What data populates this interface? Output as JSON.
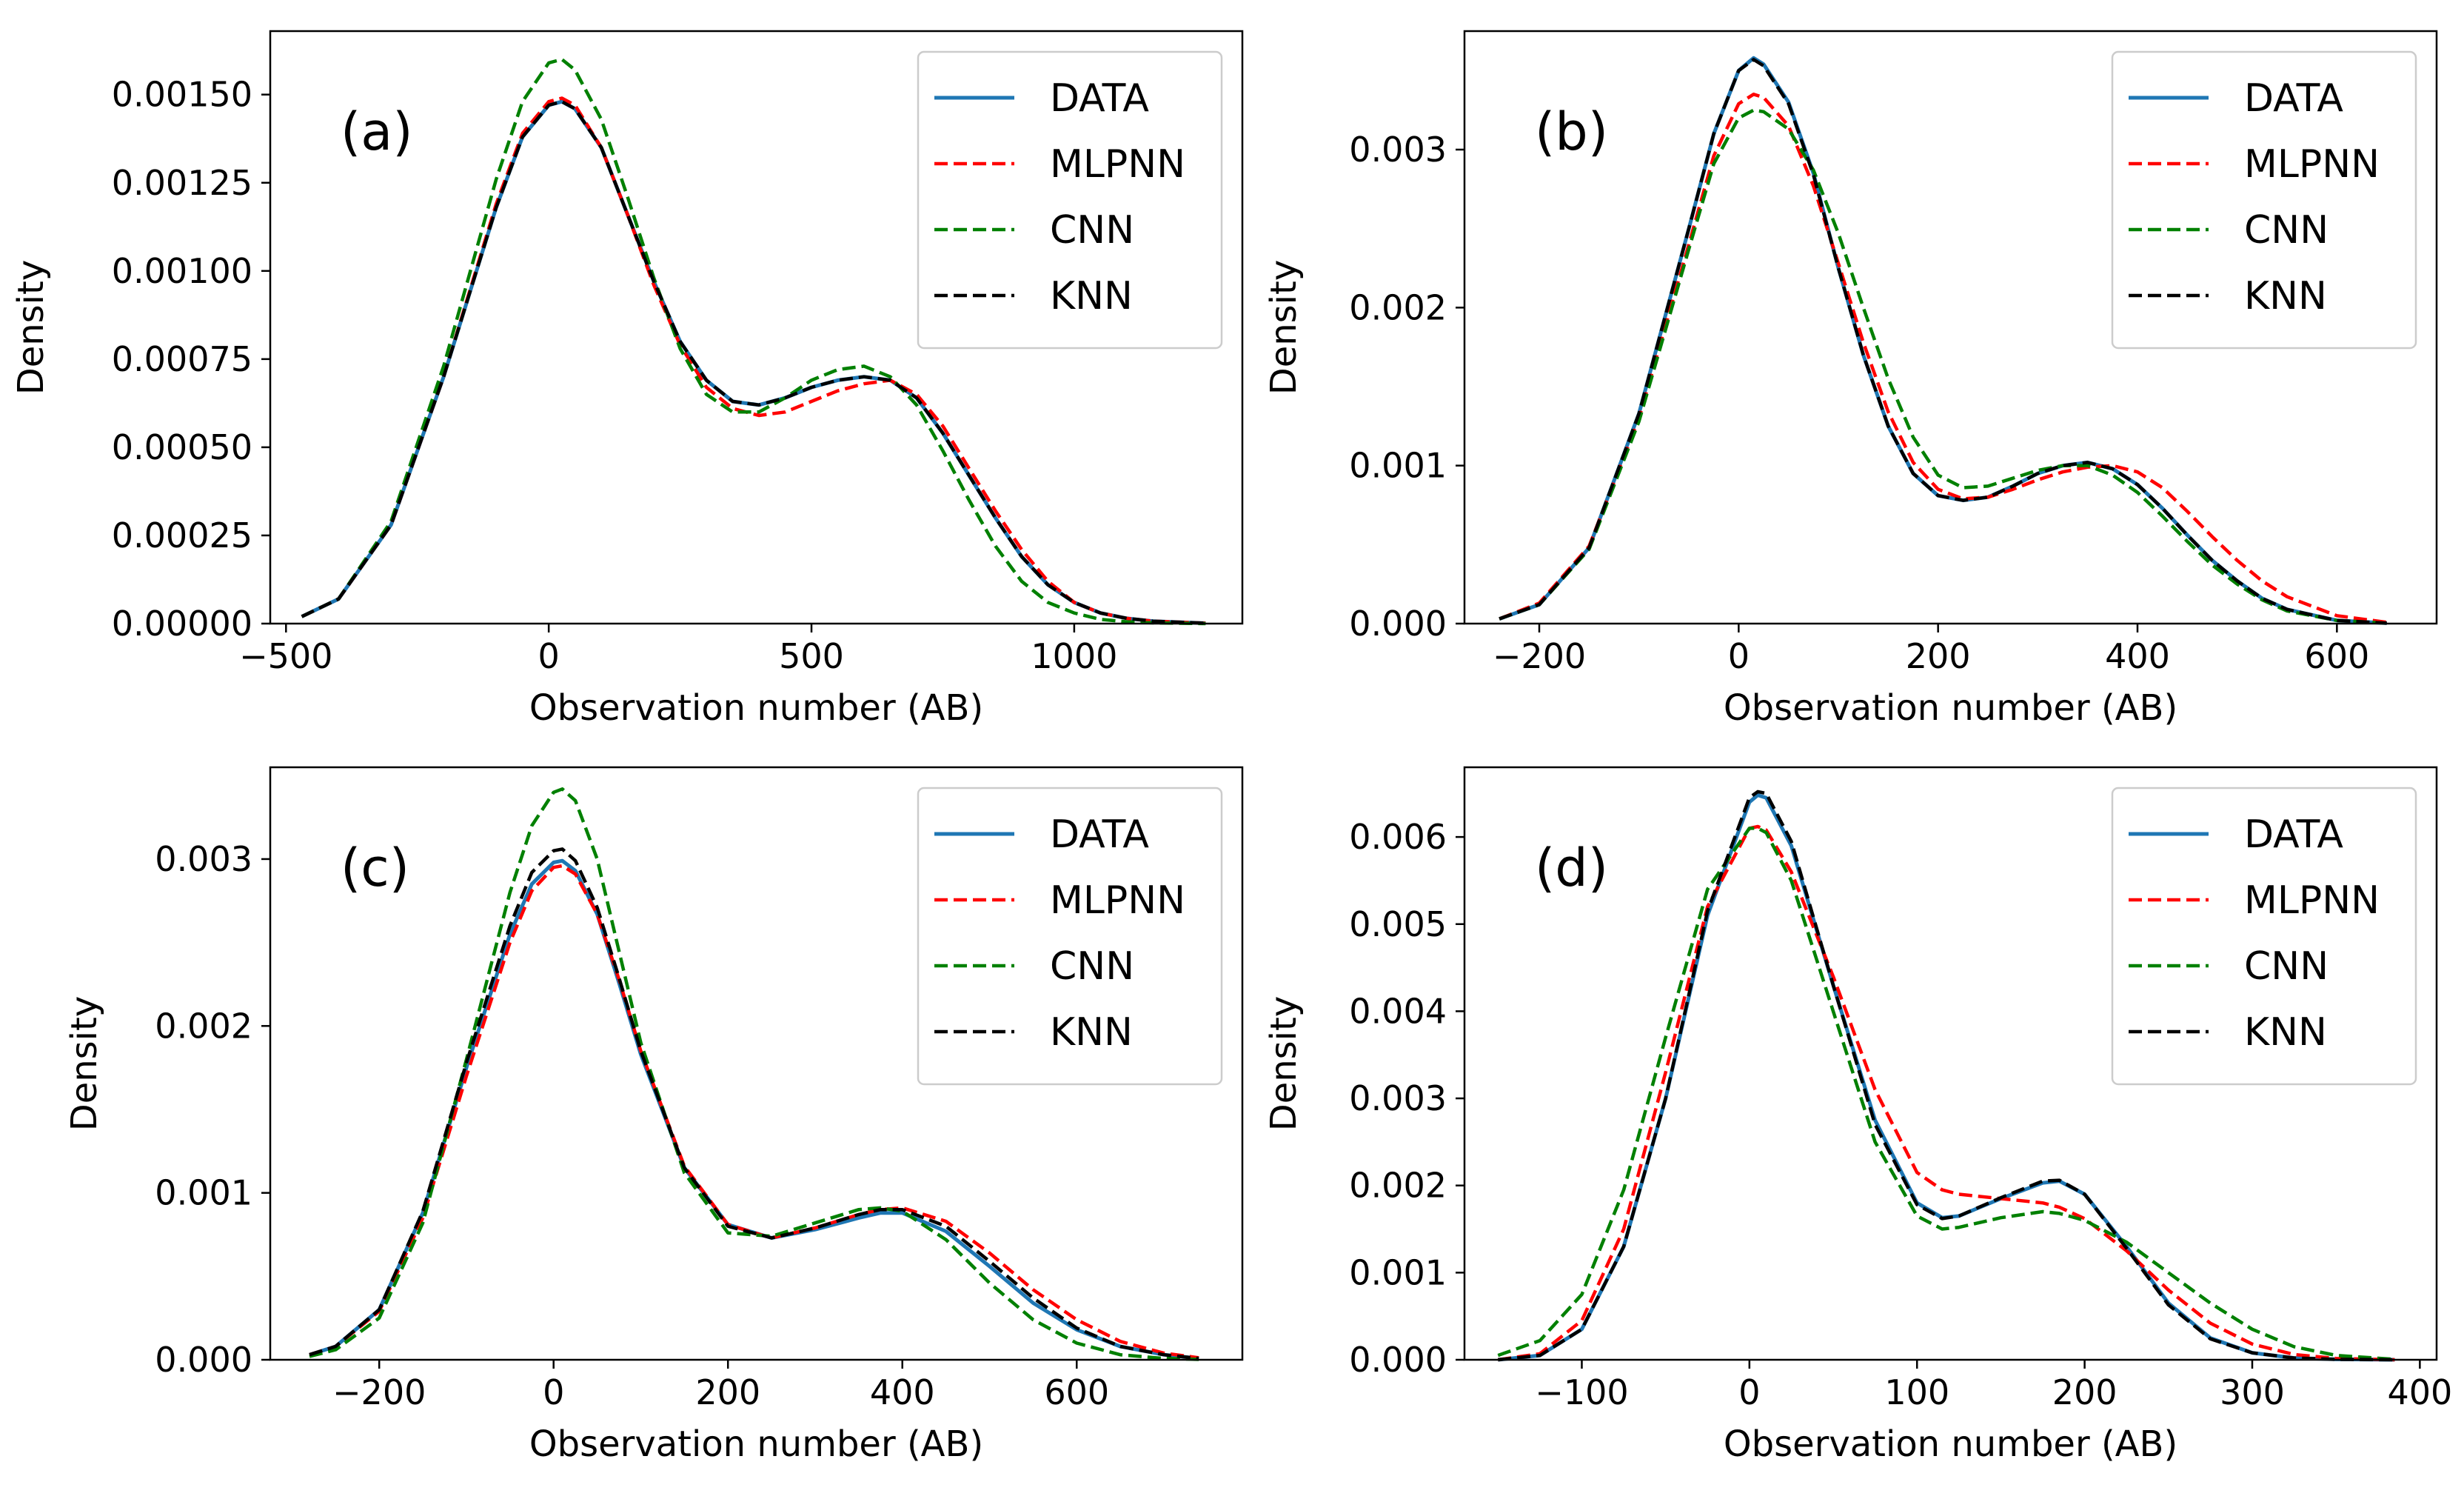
{
  "colors": {
    "DATA": "#1f77b4",
    "MLPNN": "#ff0000",
    "CNN": "#008000",
    "KNN": "#000000"
  },
  "chart_data": [
    {
      "type": "line",
      "panel": "(a)",
      "xlabel": "Observation number (AB)",
      "ylabel": "Density",
      "xlim": [
        -530,
        1320
      ],
      "ylim": [
        0,
        0.00168
      ],
      "xticks": [
        -500,
        0,
        500,
        1000
      ],
      "xtick_labels": [
        "−500",
        "0",
        "500",
        "1000"
      ],
      "yticks": [
        0,
        0.00025,
        0.0005,
        0.00075,
        0.001,
        0.00125,
        0.0015
      ],
      "ytick_labels": [
        "0.00000",
        "0.00025",
        "0.00050",
        "0.00075",
        "0.00100",
        "0.00125",
        "0.00150"
      ],
      "grid": false,
      "legend": "top-right",
      "x": [
        -470,
        -400,
        -300,
        -200,
        -100,
        -50,
        0,
        25,
        50,
        100,
        150,
        200,
        250,
        300,
        350,
        400,
        450,
        500,
        550,
        600,
        650,
        700,
        750,
        800,
        850,
        900,
        950,
        1000,
        1050,
        1100,
        1150,
        1250
      ],
      "series": [
        {
          "name": "DATA",
          "style": "solid",
          "values": [
            2e-05,
            7e-05,
            0.00028,
            0.0007,
            0.00118,
            0.00138,
            0.00147,
            0.00148,
            0.00146,
            0.00135,
            0.00116,
            0.00097,
            0.0008,
            0.00069,
            0.00063,
            0.00062,
            0.00064,
            0.00067,
            0.00069,
            0.0007,
            0.00069,
            0.00064,
            0.00054,
            0.00042,
            0.0003,
            0.00019,
            0.00011,
            6e-05,
            3e-05,
            1.5e-05,
            7e-06,
            1e-06
          ]
        },
        {
          "name": "MLPNN",
          "style": "dashed",
          "values": [
            2e-05,
            7e-05,
            0.00028,
            0.0007,
            0.00119,
            0.00139,
            0.00148,
            0.00149,
            0.00147,
            0.00135,
            0.00116,
            0.00096,
            0.00079,
            0.00067,
            0.00061,
            0.00059,
            0.0006,
            0.00063,
            0.00066,
            0.00068,
            0.00069,
            0.00065,
            0.00056,
            0.00044,
            0.00032,
            0.00021,
            0.00012,
            6e-05,
            3e-05,
            1.5e-05,
            7e-06,
            1e-06
          ]
        },
        {
          "name": "CNN",
          "style": "dashed",
          "values": [
            2e-05,
            7e-05,
            0.00029,
            0.00073,
            0.00126,
            0.00148,
            0.00159,
            0.0016,
            0.00157,
            0.00143,
            0.00121,
            0.00098,
            0.00078,
            0.00065,
            0.0006,
            0.0006,
            0.00064,
            0.00069,
            0.00072,
            0.00073,
            0.0007,
            0.00062,
            0.00049,
            0.00035,
            0.00022,
            0.00012,
            6e-05,
            3e-05,
            1.2e-05,
            5e-06,
            2e-06,
            0
          ]
        },
        {
          "name": "KNN",
          "style": "dashed",
          "values": [
            2e-05,
            7e-05,
            0.00028,
            0.0007,
            0.00118,
            0.00138,
            0.00147,
            0.00148,
            0.00146,
            0.00135,
            0.00116,
            0.00097,
            0.0008,
            0.00069,
            0.00063,
            0.00062,
            0.00064,
            0.00067,
            0.00069,
            0.0007,
            0.00069,
            0.00064,
            0.00054,
            0.00042,
            0.0003,
            0.00019,
            0.00011,
            6e-05,
            3e-05,
            1.5e-05,
            7e-06,
            1e-06
          ]
        }
      ]
    },
    {
      "type": "line",
      "panel": "(b)",
      "xlabel": "Observation number (AB)",
      "ylabel": "Density",
      "xlim": [
        -275,
        700
      ],
      "ylim": [
        0,
        0.00375
      ],
      "xticks": [
        -200,
        0,
        200,
        400,
        600
      ],
      "xtick_labels": [
        "−200",
        "0",
        "200",
        "400",
        "600"
      ],
      "yticks": [
        0,
        0.001,
        0.002,
        0.003
      ],
      "ytick_labels": [
        "0.000",
        "0.001",
        "0.002",
        "0.003"
      ],
      "grid": false,
      "legend": "top-right",
      "x": [
        -240,
        -200,
        -150,
        -100,
        -50,
        -25,
        0,
        15,
        25,
        50,
        75,
        100,
        125,
        150,
        175,
        200,
        225,
        250,
        275,
        300,
        325,
        350,
        375,
        400,
        425,
        450,
        475,
        500,
        525,
        550,
        600,
        650
      ],
      "series": [
        {
          "name": "DATA",
          "style": "solid",
          "values": [
            3e-05,
            0.00012,
            0.00048,
            0.00133,
            0.0025,
            0.0031,
            0.0035,
            0.00358,
            0.00354,
            0.0033,
            0.00285,
            0.00225,
            0.0017,
            0.00125,
            0.00095,
            0.00081,
            0.00078,
            0.0008,
            0.00087,
            0.00095,
            0.001,
            0.00102,
            0.00098,
            0.00088,
            0.00073,
            0.00056,
            0.0004,
            0.00027,
            0.00016,
            9e-05,
            2e-05,
            3e-06
          ]
        },
        {
          "name": "MLPNN",
          "style": "dashed",
          "values": [
            3e-05,
            0.00013,
            0.00049,
            0.0013,
            0.0024,
            0.00296,
            0.00329,
            0.00335,
            0.00333,
            0.00315,
            0.00277,
            0.00228,
            0.00178,
            0.00134,
            0.00102,
            0.00085,
            0.00079,
            0.0008,
            0.00085,
            0.00091,
            0.00096,
            0.00099,
            0.001,
            0.00096,
            0.00086,
            0.00071,
            0.00055,
            0.0004,
            0.00027,
            0.00017,
            5e-05,
            8e-06
          ]
        },
        {
          "name": "CNN",
          "style": "dashed",
          "values": [
            3e-05,
            0.00012,
            0.00047,
            0.00128,
            0.00237,
            0.00291,
            0.0032,
            0.00325,
            0.00324,
            0.00313,
            0.00287,
            0.00247,
            0.002,
            0.00155,
            0.00118,
            0.00094,
            0.00086,
            0.00087,
            0.00092,
            0.00097,
            0.001,
            0.001,
            0.00094,
            0.00083,
            0.00068,
            0.00052,
            0.00037,
            0.00025,
            0.00015,
            8e-05,
            2e-05,
            3e-06
          ]
        },
        {
          "name": "KNN",
          "style": "dashed",
          "values": [
            3e-05,
            0.00012,
            0.00048,
            0.00133,
            0.0025,
            0.0031,
            0.0035,
            0.00357,
            0.00353,
            0.00329,
            0.00284,
            0.00225,
            0.0017,
            0.00125,
            0.00095,
            0.00081,
            0.00078,
            0.0008,
            0.00087,
            0.00095,
            0.001,
            0.00102,
            0.00098,
            0.00088,
            0.00073,
            0.00056,
            0.0004,
            0.00027,
            0.00016,
            9e-05,
            2e-05,
            3e-06
          ]
        }
      ]
    },
    {
      "type": "line",
      "panel": "(c)",
      "xlabel": "Observation number (AB)",
      "ylabel": "Density",
      "xlim": [
        -325,
        790
      ],
      "ylim": [
        0,
        0.00355
      ],
      "xticks": [
        -200,
        0,
        200,
        400,
        600
      ],
      "xtick_labels": [
        "−200",
        "0",
        "200",
        "400",
        "600"
      ],
      "yticks": [
        0,
        0.001,
        0.002,
        0.003
      ],
      "ytick_labels": [
        "0.000",
        "0.001",
        "0.002",
        "0.003"
      ],
      "grid": false,
      "legend": "top-right",
      "x": [
        -280,
        -250,
        -200,
        -150,
        -100,
        -50,
        -25,
        0,
        10,
        25,
        50,
        75,
        100,
        150,
        200,
        250,
        300,
        350,
        375,
        400,
        450,
        500,
        550,
        600,
        650,
        700,
        740
      ],
      "series": [
        {
          "name": "DATA",
          "style": "solid",
          "values": [
            3e-05,
            8e-05,
            0.0003,
            0.00088,
            0.00175,
            0.00255,
            0.00285,
            0.00298,
            0.00299,
            0.00293,
            0.00267,
            0.00226,
            0.00183,
            0.00115,
            0.00081,
            0.00073,
            0.00078,
            0.00085,
            0.00088,
            0.00088,
            0.00077,
            0.00056,
            0.00034,
            0.00018,
            8e-05,
            3e-05,
            8e-06
          ]
        },
        {
          "name": "MLPNN",
          "style": "dashed",
          "values": [
            3e-05,
            8e-05,
            0.00029,
            0.00085,
            0.0017,
            0.0025,
            0.00281,
            0.00295,
            0.00296,
            0.00291,
            0.00267,
            0.00228,
            0.00185,
            0.00116,
            0.00081,
            0.00073,
            0.00079,
            0.00087,
            0.0009,
            0.00091,
            0.00083,
            0.00064,
            0.00042,
            0.00024,
            0.00011,
            4e-05,
            1.2e-05
          ]
        },
        {
          "name": "CNN",
          "style": "dashed",
          "values": [
            2e-05,
            6e-05,
            0.00025,
            0.00082,
            0.0018,
            0.0028,
            0.0032,
            0.0034,
            0.00342,
            0.00335,
            0.003,
            0.00245,
            0.0019,
            0.00112,
            0.00076,
            0.00074,
            0.00082,
            0.0009,
            0.00091,
            0.00089,
            0.00072,
            0.00046,
            0.00024,
            0.0001,
            3e-05,
            8e-06,
            2e-06
          ]
        },
        {
          "name": "KNN",
          "style": "dashed",
          "values": [
            3e-05,
            8e-05,
            0.0003,
            0.00089,
            0.00178,
            0.0026,
            0.00292,
            0.00305,
            0.00306,
            0.00299,
            0.00271,
            0.00229,
            0.00185,
            0.00115,
            0.0008,
            0.00073,
            0.00079,
            0.00087,
            0.0009,
            0.0009,
            0.0008,
            0.00059,
            0.00037,
            0.00019,
            8e-05,
            3e-05,
            8e-06
          ]
        }
      ]
    },
    {
      "type": "line",
      "panel": "(d)",
      "xlabel": "Observation number (AB)",
      "ylabel": "Density",
      "xlim": [
        -170,
        410
      ],
      "ylim": [
        0,
        0.0068
      ],
      "xticks": [
        -100,
        0,
        100,
        200,
        300,
        400
      ],
      "xtick_labels": [
        "−100",
        "0",
        "100",
        "200",
        "300",
        "400"
      ],
      "yticks": [
        0,
        0.001,
        0.002,
        0.003,
        0.004,
        0.005,
        0.006
      ],
      "ytick_labels": [
        "0.000",
        "0.001",
        "0.002",
        "0.003",
        "0.004",
        "0.005",
        "0.006"
      ],
      "grid": false,
      "legend": "top-right",
      "x": [
        -150,
        -125,
        -100,
        -75,
        -50,
        -25,
        0,
        5,
        10,
        25,
        50,
        75,
        100,
        115,
        125,
        150,
        175,
        185,
        200,
        225,
        250,
        275,
        300,
        325,
        350,
        385
      ],
      "series": [
        {
          "name": "DATA",
          "style": "solid",
          "values": [
            0,
            5e-05,
            0.00035,
            0.0013,
            0.003,
            0.0051,
            0.0064,
            0.00648,
            0.00645,
            0.0059,
            0.0043,
            0.00275,
            0.0018,
            0.00163,
            0.00165,
            0.00185,
            0.00203,
            0.00205,
            0.0019,
            0.0013,
            0.00065,
            0.00025,
            8e-05,
            2e-05,
            5e-06,
            0
          ]
        },
        {
          "name": "MLPNN",
          "style": "dashed",
          "values": [
            0,
            7e-05,
            0.00045,
            0.0015,
            0.0033,
            0.0052,
            0.0061,
            0.00612,
            0.00608,
            0.0056,
            0.0044,
            0.0031,
            0.00215,
            0.00195,
            0.0019,
            0.00185,
            0.0018,
            0.00175,
            0.00162,
            0.00125,
            0.0008,
            0.00042,
            0.00018,
            6e-05,
            1.5e-05,
            0
          ]
        },
        {
          "name": "CNN",
          "style": "dashed",
          "values": [
            5e-05,
            0.00022,
            0.00075,
            0.00195,
            0.0037,
            0.0054,
            0.0061,
            0.0061,
            0.00605,
            0.0055,
            0.004,
            0.0025,
            0.00165,
            0.0015,
            0.00152,
            0.00163,
            0.0017,
            0.00168,
            0.0016,
            0.00135,
            0.001,
            0.00065,
            0.00035,
            0.00015,
            5e-05,
            5e-06
          ]
        },
        {
          "name": "KNN",
          "style": "dashed",
          "values": [
            0,
            5e-05,
            0.00035,
            0.0013,
            0.003,
            0.00515,
            0.00645,
            0.00652,
            0.0065,
            0.00595,
            0.0043,
            0.0027,
            0.00178,
            0.00162,
            0.00165,
            0.00186,
            0.00205,
            0.00206,
            0.0019,
            0.00128,
            0.00063,
            0.00024,
            8e-05,
            2e-05,
            5e-06,
            0
          ]
        }
      ]
    }
  ]
}
